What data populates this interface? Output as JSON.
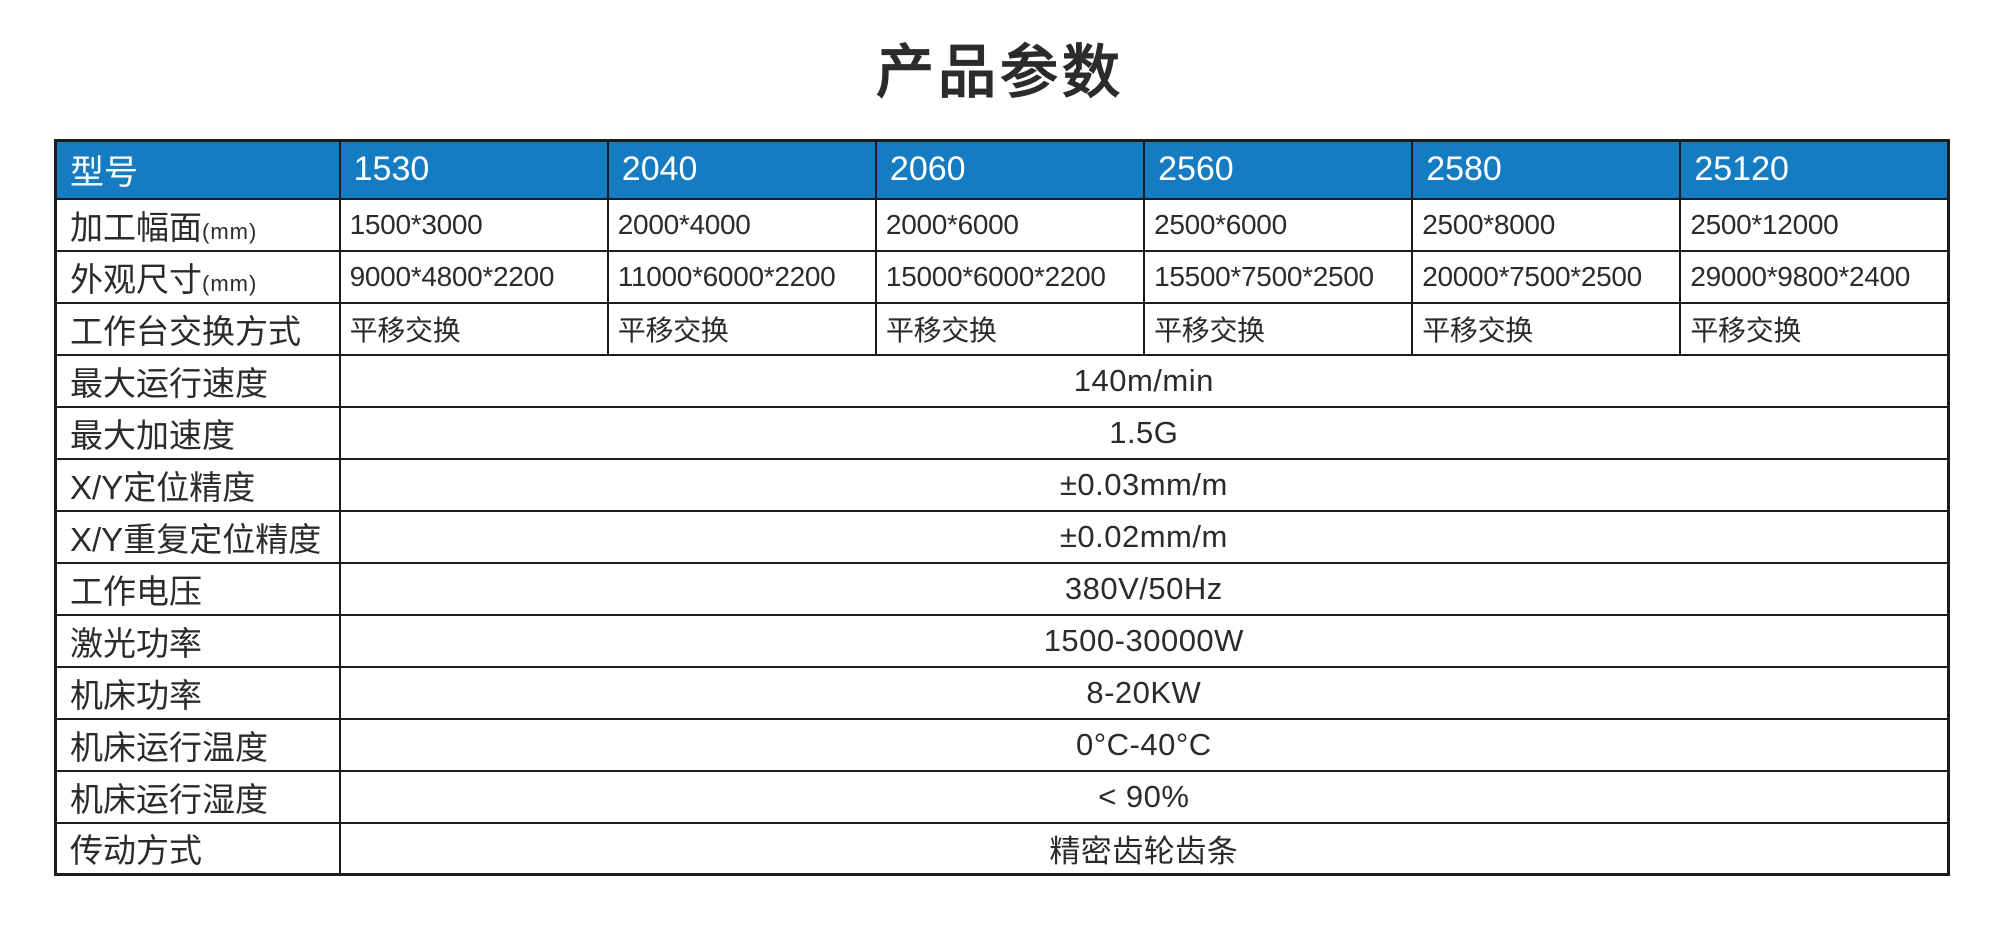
{
  "page": {
    "title": "产品参数"
  },
  "colors": {
    "header_bg": "#157cc2",
    "header_text": "#ffffff",
    "border": "#1c1c1c",
    "text": "#2b2b2b",
    "background": "#ffffff"
  },
  "chart_data": {
    "type": "table",
    "title": "产品参数",
    "columns": [
      "型号",
      "1530",
      "2040",
      "2060",
      "2560",
      "2580",
      "25120"
    ],
    "rows": [
      [
        "加工幅面(mm)",
        "1500*3000",
        "2000*4000",
        "2000*6000",
        "2500*6000",
        "2500*8000",
        "2500*12000"
      ],
      [
        "外观尺寸(mm)",
        "9000*4800*2200",
        "11000*6000*2200",
        "15000*6000*2200",
        "15500*7500*2500",
        "20000*7500*2500",
        "29000*9800*2400"
      ],
      [
        "工作台交换方式",
        "平移交换",
        "平移交换",
        "平移交换",
        "平移交换",
        "平移交换",
        "平移交换"
      ],
      [
        "最大运行速度",
        "140m/min"
      ],
      [
        "最大加速度",
        "1.5G"
      ],
      [
        "X/Y定位精度",
        "±0.03mm/m"
      ],
      [
        "X/Y重复定位精度",
        "±0.02mm/m"
      ],
      [
        "工作电压",
        "380V/50Hz"
      ],
      [
        "激光功率",
        "1500-30000W"
      ],
      [
        "机床功率",
        "8-20KW"
      ],
      [
        "机床运行温度",
        "0°C-40°C"
      ],
      [
        "机床运行湿度",
        "< 90%"
      ],
      [
        "传动方式",
        "精密齿轮齿条"
      ]
    ]
  },
  "table": {
    "header": {
      "label": "型号",
      "models": [
        "1530",
        "2040",
        "2060",
        "2560",
        "2580",
        "25120"
      ]
    },
    "per_model_rows": [
      {
        "label": "加工幅面",
        "unit": "(mm)",
        "values": [
          "1500*3000",
          "2000*4000",
          "2000*6000",
          "2500*6000",
          "2500*8000",
          "2500*12000"
        ]
      },
      {
        "label": "外观尺寸",
        "unit": "(mm)",
        "values": [
          "9000*4800*2200",
          "11000*6000*2200",
          "15000*6000*2200",
          "15500*7500*2500",
          "20000*7500*2500",
          "29000*9800*2400"
        ]
      },
      {
        "label": "工作台交换方式",
        "unit": "",
        "values": [
          "平移交换",
          "平移交换",
          "平移交换",
          "平移交换",
          "平移交换",
          "平移交换"
        ]
      }
    ],
    "spanned_rows": [
      {
        "label": "最大运行速度",
        "value": "140m/min"
      },
      {
        "label": "最大加速度",
        "value": "1.5G"
      },
      {
        "label": "X/Y定位精度",
        "value": "±0.03mm/m"
      },
      {
        "label": "X/Y重复定位精度",
        "value": "±0.02mm/m"
      },
      {
        "label": "工作电压",
        "value": "380V/50Hz"
      },
      {
        "label": "激光功率",
        "value": "1500-30000W"
      },
      {
        "label": "机床功率",
        "value": "8-20KW"
      },
      {
        "label": "机床运行温度",
        "value": "0°C-40°C"
      },
      {
        "label": "机床运行湿度",
        "value": "< 90%"
      },
      {
        "label": "传动方式",
        "value": "精密齿轮齿条"
      }
    ]
  }
}
